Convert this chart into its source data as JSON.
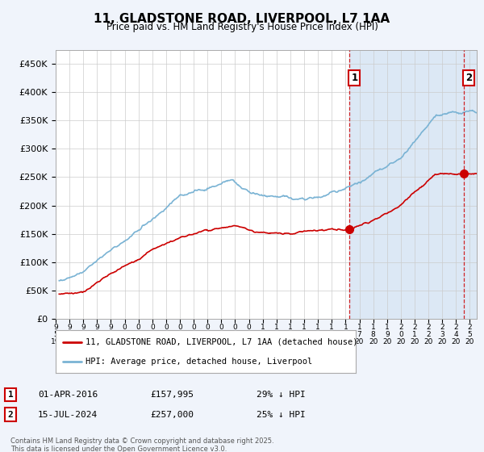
{
  "title": "11, GLADSTONE ROAD, LIVERPOOL, L7 1AA",
  "subtitle": "Price paid vs. HM Land Registry's House Price Index (HPI)",
  "ylim": [
    0,
    475000
  ],
  "yticks": [
    0,
    50000,
    100000,
    150000,
    200000,
    250000,
    300000,
    350000,
    400000,
    450000
  ],
  "ytick_labels": [
    "£0",
    "£50K",
    "£100K",
    "£150K",
    "£200K",
    "£250K",
    "£300K",
    "£350K",
    "£400K",
    "£450K"
  ],
  "xlim_start": 1995.25,
  "xlim_end": 2025.5,
  "hpi_color": "#7ab3d4",
  "price_color": "#cc0000",
  "marker1_date": 2016.25,
  "marker1_price": 157995,
  "marker2_date": 2024.54,
  "marker2_price": 257000,
  "vline_color": "#cc0000",
  "legend_line1": "11, GLADSTONE ROAD, LIVERPOOL, L7 1AA (detached house)",
  "legend_line2": "HPI: Average price, detached house, Liverpool",
  "note1_num": "1",
  "note1_date": "01-APR-2016",
  "note1_price": "£157,995",
  "note1_pct": "29% ↓ HPI",
  "note2_num": "2",
  "note2_date": "15-JUL-2024",
  "note2_price": "£257,000",
  "note2_pct": "25% ↓ HPI",
  "copyright": "Contains HM Land Registry data © Crown copyright and database right 2025.\nThis data is licensed under the Open Government Licence v3.0.",
  "bg_color": "#f0f4fb",
  "plot_bg": "#ffffff",
  "shade_color": "#dce8f5"
}
